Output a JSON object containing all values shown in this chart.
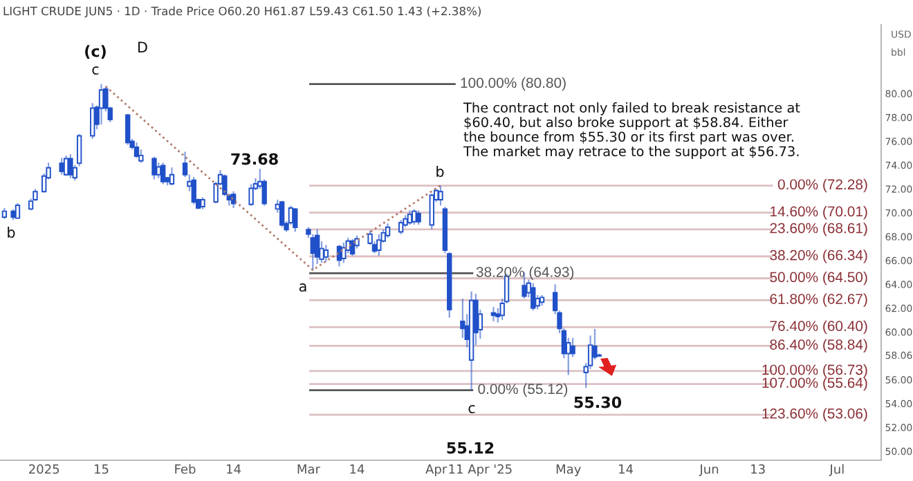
{
  "chart_data": {
    "type": "candlestick",
    "title": "LIGHT CRUDE JUN5 · 1D · Trade Price O60.20 H61.87 L59.43 C61.50 1.43 (+2.38%)",
    "x": [
      "2024-12-24",
      "2024-12-26",
      "2024-12-27",
      "2024-12-30",
      "2024-12-31",
      "2025-01-02",
      "2025-01-03",
      "2025-01-06",
      "2025-01-07",
      "2025-01-08",
      "2025-01-09",
      "2025-01-10",
      "2025-01-13",
      "2025-01-14",
      "2025-01-15",
      "2025-01-16",
      "2025-01-17",
      "2025-01-21",
      "2025-01-22",
      "2025-01-23",
      "2025-01-24",
      "2025-01-27",
      "2025-01-28",
      "2025-01-29",
      "2025-01-30",
      "2025-01-31",
      "2025-02-03",
      "2025-02-04",
      "2025-02-05",
      "2025-02-06",
      "2025-02-07",
      "2025-02-10",
      "2025-02-11",
      "2025-02-12",
      "2025-02-13",
      "2025-02-14",
      "2025-02-18",
      "2025-02-19",
      "2025-02-20",
      "2025-02-21",
      "2025-02-24",
      "2025-02-25",
      "2025-02-26",
      "2025-02-27",
      "2025-02-28",
      "2025-03-03",
      "2025-03-04",
      "2025-03-05",
      "2025-03-06",
      "2025-03-07",
      "2025-03-10",
      "2025-03-11",
      "2025-03-12",
      "2025-03-13",
      "2025-03-14",
      "2025-03-17",
      "2025-03-18",
      "2025-03-19",
      "2025-03-20",
      "2025-03-21",
      "2025-03-24",
      "2025-03-25",
      "2025-03-26",
      "2025-03-27",
      "2025-03-28",
      "2025-03-31",
      "2025-04-01",
      "2025-04-02",
      "2025-04-03",
      "2025-04-04",
      "2025-04-07",
      "2025-04-08",
      "2025-04-09",
      "2025-04-10",
      "2025-04-11",
      "2025-04-14",
      "2025-04-15",
      "2025-04-16",
      "2025-04-17",
      "2025-04-21",
      "2025-04-22",
      "2025-04-23",
      "2025-04-24",
      "2025-04-25",
      "2025-04-28",
      "2025-04-29",
      "2025-04-30",
      "2025-05-01",
      "2025-05-02",
      "2025-05-05",
      "2025-05-06",
      "2025-05-07",
      "2025-05-08"
    ],
    "series": [
      {
        "color": "#2151c9",
        "ohlc": [
          [
            69.63,
            70.4,
            69.5,
            70.13
          ],
          [
            70.13,
            70.3,
            69.4,
            69.63
          ],
          [
            69.55,
            70.8,
            69.5,
            70.63
          ],
          [
            70.32,
            71.2,
            70.2,
            70.97
          ],
          [
            71.09,
            72.0,
            71.0,
            71.78
          ],
          [
            71.78,
            73.3,
            71.7,
            73.08
          ],
          [
            72.93,
            74.2,
            72.8,
            73.78
          ],
          [
            74.16,
            74.6,
            73.2,
            73.47
          ],
          [
            73.2,
            74.8,
            73.1,
            74.54
          ],
          [
            74.54,
            74.9,
            72.9,
            73.2
          ],
          [
            72.93,
            74.0,
            72.7,
            73.78
          ],
          [
            74.16,
            76.6,
            73.9,
            76.46
          ],
          [
            76.46,
            79.2,
            76.2,
            78.77
          ],
          [
            78.85,
            79.0,
            77.0,
            77.42
          ],
          [
            78.77,
            80.8,
            77.4,
            80.3
          ],
          [
            80.38,
            80.6,
            78.5,
            78.77
          ],
          [
            78.77,
            78.9,
            77.6,
            77.81
          ],
          [
            78.19,
            78.3,
            75.7,
            75.89
          ],
          [
            76.0,
            76.2,
            75.3,
            75.5
          ],
          [
            75.5,
            75.9,
            74.6,
            74.74
          ],
          [
            74.35,
            75.3,
            74.2,
            74.81
          ],
          [
            74.54,
            74.7,
            72.8,
            73.2
          ],
          [
            73.2,
            74.2,
            72.9,
            73.85
          ],
          [
            73.97,
            74.2,
            72.4,
            72.62
          ],
          [
            72.93,
            73.0,
            72.3,
            72.62
          ],
          [
            72.43,
            73.8,
            72.3,
            73.2
          ],
          [
            74.16,
            75.12,
            73.0,
            73.2
          ],
          [
            72.24,
            73.2,
            71.8,
            72.62
          ],
          [
            72.74,
            73.0,
            70.7,
            70.9
          ],
          [
            71.09,
            71.2,
            70.3,
            70.4
          ],
          [
            70.51,
            71.3,
            70.3,
            71.09
          ],
          [
            70.9,
            72.6,
            70.8,
            72.43
          ],
          [
            72.43,
            73.58,
            72.3,
            73.2
          ],
          [
            73.08,
            73.2,
            71.4,
            71.55
          ],
          [
            71.47,
            71.6,
            70.6,
            71.09
          ],
          [
            71.55,
            71.8,
            70.4,
            70.78
          ],
          [
            70.7,
            72.4,
            70.6,
            72.05
          ],
          [
            72.05,
            72.9,
            71.9,
            72.43
          ],
          [
            72.24,
            73.68,
            72.0,
            72.62
          ],
          [
            72.62,
            72.8,
            70.6,
            70.78
          ],
          [
            70.32,
            71.1,
            70.0,
            70.7
          ],
          [
            70.9,
            71.0,
            68.8,
            68.98
          ],
          [
            69.09,
            69.3,
            68.4,
            68.59
          ],
          [
            69.17,
            70.6,
            69.0,
            70.4
          ],
          [
            70.32,
            70.4,
            68.4,
            68.78
          ],
          [
            68.59,
            68.8,
            67.9,
            68.21
          ],
          [
            67.9,
            68.2,
            65.2,
            66.6
          ],
          [
            68.09,
            68.6,
            65.7,
            66.29
          ],
          [
            66.1,
            67.6,
            65.8,
            67.0
          ],
          [
            66.29,
            67.3,
            65.9,
            66.86
          ],
          [
            67.17,
            67.3,
            65.5,
            66.02
          ],
          [
            66.17,
            67.5,
            65.8,
            67.06
          ],
          [
            66.86,
            67.9,
            66.6,
            67.63
          ],
          [
            67.63,
            67.8,
            66.4,
            66.56
          ],
          [
            67.25,
            68.1,
            67.0,
            67.82
          ],
          [
            67.44,
            68.5,
            67.3,
            68.21
          ],
          [
            67.32,
            67.6,
            66.6,
            66.79
          ],
          [
            66.86,
            68.2,
            66.4,
            67.71
          ],
          [
            67.63,
            68.6,
            67.5,
            68.32
          ],
          [
            68.09,
            69.1,
            67.9,
            68.79
          ],
          [
            68.4,
            69.4,
            68.2,
            69.17
          ],
          [
            68.98,
            69.8,
            68.8,
            69.48
          ],
          [
            69.17,
            70.2,
            69.0,
            69.86
          ],
          [
            69.25,
            70.3,
            69.0,
            70.13
          ],
          [
            69.94,
            70.2,
            69.0,
            69.25
          ],
          [
            68.98,
            71.6,
            68.6,
            71.47
          ],
          [
            71.09,
            72.0,
            70.9,
            71.86
          ],
          [
            71.09,
            72.28,
            70.6,
            71.78
          ],
          [
            70.32,
            70.5,
            66.6,
            66.86
          ],
          [
            66.56,
            66.7,
            61.2,
            61.87
          ],
          [
            60.9,
            62.8,
            59.5,
            60.3
          ],
          [
            60.5,
            61.5,
            58.7,
            59.38
          ],
          [
            57.65,
            63.4,
            55.12,
            62.64
          ],
          [
            62.64,
            63.2,
            58.9,
            59.95
          ],
          [
            60.2,
            61.87,
            59.43,
            61.5
          ],
          [
            61.6,
            62.1,
            60.9,
            61.4
          ],
          [
            61.5,
            62.0,
            60.8,
            61.3
          ],
          [
            61.4,
            62.8,
            61.0,
            62.4
          ],
          [
            62.56,
            64.87,
            62.4,
            64.68
          ],
          [
            63.9,
            65.0,
            62.8,
            63.0
          ],
          [
            63.3,
            64.4,
            62.9,
            64.1
          ],
          [
            63.7,
            64.1,
            61.8,
            62.0
          ],
          [
            62.2,
            63.1,
            61.9,
            62.8
          ],
          [
            62.5,
            63.1,
            62.2,
            62.9
          ],
          [
            63.3,
            64.0,
            61.5,
            61.8
          ],
          [
            61.6,
            61.8,
            59.9,
            60.3
          ],
          [
            60.1,
            60.3,
            57.8,
            58.2
          ],
          [
            58.2,
            59.5,
            56.4,
            59.1
          ],
          [
            58.8,
            59.5,
            57.9,
            58.2
          ],
          [
            56.6,
            57.4,
            55.3,
            57.1
          ],
          [
            57.2,
            59.7,
            56.9,
            58.9
          ],
          [
            58.8,
            60.26,
            57.7,
            57.9
          ],
          [
            58.0,
            58.2,
            57.9,
            58.06
          ]
        ]
      },
      {
        "type": "line",
        "color": "#b27a6a",
        "line_style": "dotted",
        "x": [
          "2025-01-16",
          "2025-03-04",
          "2025-04-02"
        ],
        "values": [
          80.6,
          65.2,
          72.3
        ]
      }
    ],
    "xlim": [
      "2024-12-23",
      "2025-07-11"
    ],
    "xticks": [
      {
        "value": "2025-01-02",
        "label": "2025"
      },
      {
        "value": "2025-01-15",
        "label": "15"
      },
      {
        "value": "2025-02-03",
        "label": "Feb"
      },
      {
        "value": "2025-02-14",
        "label": "14"
      },
      {
        "value": "2025-03-03",
        "label": "Mar"
      },
      {
        "value": "2025-03-14",
        "label": "14"
      },
      {
        "value": "2025-04-01",
        "label": "Apr"
      },
      {
        "value": "2025-04-11",
        "label": "11 Apr '25"
      },
      {
        "value": "2025-05-01",
        "label": "May"
      },
      {
        "value": "2025-05-14",
        "label": "14"
      },
      {
        "value": "2025-06-02",
        "label": "Jun"
      },
      {
        "value": "2025-06-13",
        "label": "13"
      },
      {
        "value": "2025-07-01",
        "label": "Jul"
      }
    ],
    "ylim": [
      49.24,
      85.76
    ],
    "yticks": [
      {
        "value": 50,
        "label": "50.00"
      },
      {
        "value": 52,
        "label": "52.00"
      },
      {
        "value": 54,
        "label": "54.00"
      },
      {
        "value": 56,
        "label": "56.00"
      },
      58.06,
      {
        "value": 60,
        "label": "60.00"
      },
      {
        "value": 62,
        "label": "62.00"
      },
      {
        "value": 64,
        "label": "64.00"
      },
      {
        "value": 66,
        "label": "66.00"
      },
      {
        "value": 68,
        "label": "68.00"
      },
      {
        "value": 70,
        "label": "70.00"
      },
      {
        "value": 72,
        "label": "72.00"
      },
      {
        "value": 74,
        "label": "74.00"
      },
      {
        "value": 76,
        "label": "76.00"
      },
      {
        "value": 78,
        "label": "78.00"
      },
      {
        "value": 80,
        "label": "80.00"
      }
    ],
    "ref_lines": [
      {
        "axis": "y",
        "value": 80.8,
        "label": "100.00% (80.80)",
        "color": "#555555"
      },
      {
        "axis": "y",
        "value": 72.28,
        "label": "0.00% (72.28)",
        "color": "#8b2f35"
      },
      {
        "axis": "y",
        "value": 70.01,
        "label": "14.60% (70.01)",
        "color": "#8b2f35"
      },
      {
        "axis": "y",
        "value": 68.61,
        "label": "23.60% (68.61)",
        "color": "#8b2f35"
      },
      {
        "axis": "y",
        "value": 66.34,
        "label": "38.20% (66.34)",
        "color": "#8b2f35"
      },
      {
        "axis": "y",
        "value": 64.5,
        "label": "50.00% (64.50)",
        "color": "#8b2f35"
      },
      {
        "axis": "y",
        "value": 62.67,
        "label": "61.80% (62.67)",
        "color": "#8b2f35"
      },
      {
        "axis": "y",
        "value": 60.4,
        "label": "76.40% (60.40)",
        "color": "#8b2f35"
      },
      {
        "axis": "y",
        "value": 58.84,
        "label": "86.40% (58.84)",
        "color": "#8b2f35"
      },
      {
        "axis": "y",
        "value": 56.73,
        "label": "100.00% (56.73)",
        "color": "#8b2f35"
      },
      {
        "axis": "y",
        "value": 55.64,
        "label": "107.00% (55.64)",
        "color": "#8b2f35"
      },
      {
        "axis": "y",
        "value": 53.06,
        "label": "123.60% (53.06)",
        "color": "#8b2f35"
      },
      {
        "axis": "y",
        "value": 64.93,
        "label": "38.20% (64.93)",
        "color": "#555555"
      },
      {
        "axis": "y",
        "value": 55.12,
        "label": "0.00% (55.12)",
        "color": "#555555"
      }
    ],
    "annotations": [
      "The contract not only failed to break resistance at\n$60.40, but also broke support at $58.84. Either\nthe bounce from $55.30 or its first part was over.\nThe market may retrace to the support at $56.73.",
      "USD",
      "bbl",
      "(c)",
      "c",
      "D",
      "b",
      "73.68",
      "a",
      "b",
      "c",
      "55.12",
      "55.30"
    ],
    "grid": false,
    "legend": false
  }
}
